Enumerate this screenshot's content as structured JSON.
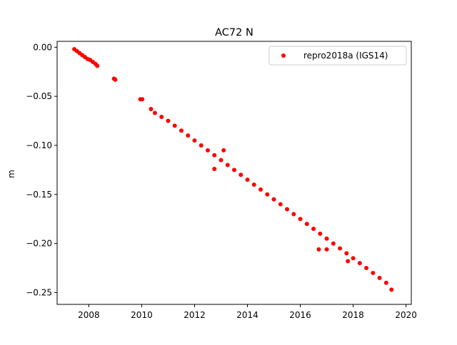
{
  "chart_data": {
    "type": "scatter",
    "title": "AC72 N",
    "xlabel": "",
    "ylabel": "m",
    "xlim": [
      2006.8,
      2020.2
    ],
    "ylim": [
      -0.262,
      0.006
    ],
    "xticks": [
      2008,
      2010,
      2012,
      2014,
      2016,
      2018,
      2020
    ],
    "xtick_labels": [
      "2008",
      "2010",
      "2012",
      "2014",
      "2016",
      "2018",
      "2020"
    ],
    "yticks": [
      0.0,
      -0.05,
      -0.1,
      -0.15,
      -0.2,
      -0.25
    ],
    "ytick_labels": [
      "0.00",
      "−0.05",
      "−0.10",
      "−0.15",
      "−0.20",
      "−0.25"
    ],
    "grid": false,
    "legend_position": "top-right",
    "series": [
      {
        "name": "repro2018a (IGS14)",
        "color": "#ff0000",
        "marker": "circle",
        "x": [
          2007.45,
          2007.55,
          2007.65,
          2007.75,
          2007.85,
          2007.95,
          2008.05,
          2008.15,
          2008.25,
          2008.32,
          2008.95,
          2009.0,
          2009.95,
          2010.02,
          2010.35,
          2010.5,
          2010.75,
          2011.0,
          2011.25,
          2011.5,
          2011.75,
          2012.0,
          2012.25,
          2012.5,
          2012.75,
          2013.0,
          2013.25,
          2013.5,
          2013.75,
          2014.0,
          2014.25,
          2014.5,
          2014.75,
          2015.0,
          2015.25,
          2015.5,
          2015.75,
          2016.0,
          2016.25,
          2016.5,
          2016.75,
          2017.0,
          2017.25,
          2017.5,
          2017.75,
          2018.0,
          2018.25,
          2018.5,
          2018.75,
          2019.0,
          2019.25,
          2019.45,
          2012.75,
          2013.1,
          2016.7,
          2017.0,
          2017.8
        ],
        "y": [
          -0.002,
          -0.004,
          -0.006,
          -0.008,
          -0.01,
          -0.012,
          -0.013,
          -0.015,
          -0.017,
          -0.019,
          -0.032,
          -0.033,
          -0.053,
          -0.053,
          -0.063,
          -0.067,
          -0.071,
          -0.075,
          -0.08,
          -0.085,
          -0.09,
          -0.095,
          -0.1,
          -0.105,
          -0.11,
          -0.115,
          -0.12,
          -0.125,
          -0.13,
          -0.135,
          -0.14,
          -0.145,
          -0.15,
          -0.155,
          -0.16,
          -0.165,
          -0.17,
          -0.175,
          -0.18,
          -0.185,
          -0.19,
          -0.195,
          -0.2,
          -0.205,
          -0.21,
          -0.215,
          -0.22,
          -0.225,
          -0.23,
          -0.235,
          -0.24,
          -0.247,
          -0.124,
          -0.105,
          -0.206,
          -0.206,
          -0.218
        ]
      }
    ]
  }
}
